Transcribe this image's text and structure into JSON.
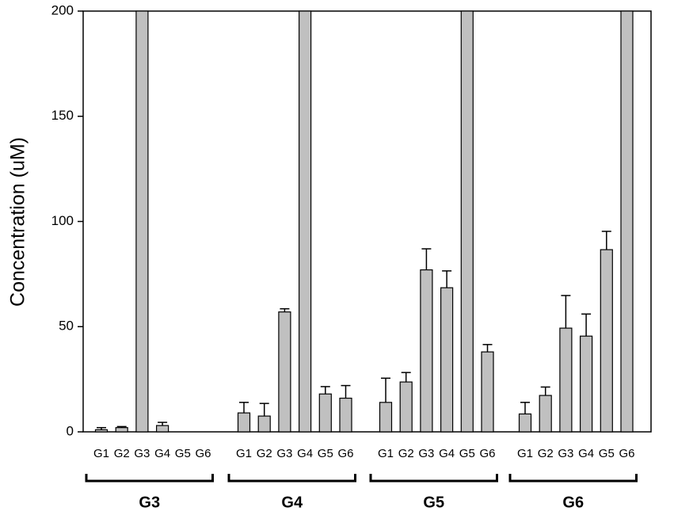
{
  "chart_data": {
    "type": "bar",
    "y_label": "Concentration (uM)",
    "subcategories": [
      "G1",
      "G2",
      "G3",
      "G4",
      "G5",
      "G6"
    ],
    "groups": [
      {
        "label": "G3",
        "values": [
          1,
          2,
          200,
          3,
          null,
          null
        ],
        "errors": [
          1,
          0.5,
          0,
          1.5,
          null,
          null
        ]
      },
      {
        "label": "G4",
        "values": [
          9,
          7.5,
          57,
          200,
          18,
          16
        ],
        "errors": [
          5,
          6,
          1.5,
          0,
          3.5,
          6
        ]
      },
      {
        "label": "G5",
        "values": [
          14,
          23.7,
          77,
          68.5,
          200,
          38
        ],
        "errors": [
          11.5,
          4.5,
          10,
          8,
          0,
          3.5
        ]
      },
      {
        "label": "G6",
        "values": [
          8.5,
          17.3,
          49.3,
          45.5,
          86.6,
          200
        ],
        "errors": [
          5.5,
          4,
          15.5,
          10.5,
          8.7,
          0
        ]
      }
    ],
    "color": "#c0c0c0",
    "ylim": [
      0,
      200
    ],
    "yticks": [
      0,
      50,
      100,
      150,
      200
    ]
  }
}
